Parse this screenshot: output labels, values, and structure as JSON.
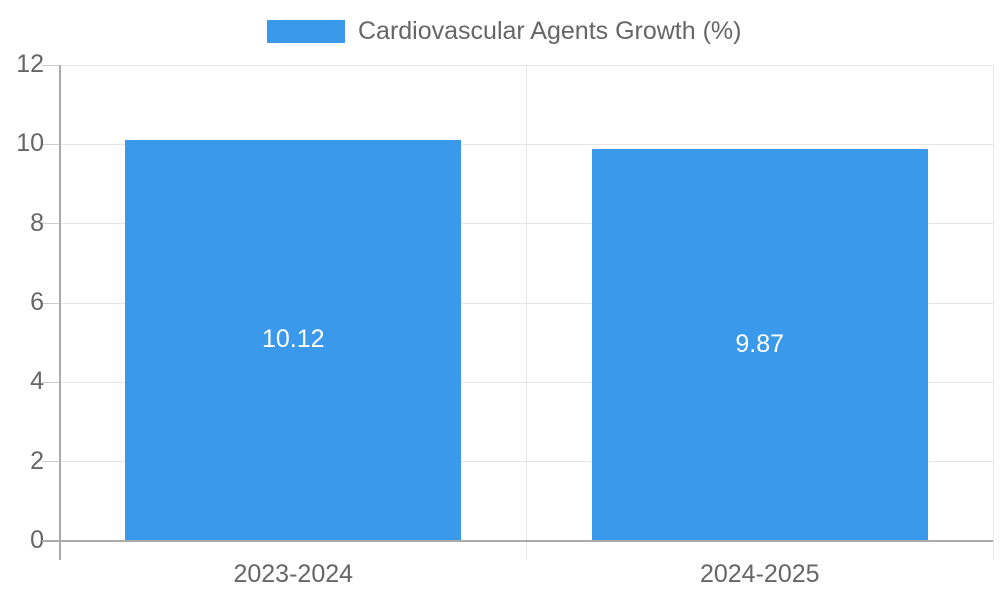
{
  "chart_data": {
    "type": "bar",
    "legend_label": "Cardiovascular Agents Growth (%)",
    "legend_position": "top",
    "categories": [
      "2023-2024",
      "2024-2025"
    ],
    "values": [
      10.12,
      9.87
    ],
    "value_labels": [
      "10.12",
      "9.87"
    ],
    "ylim": [
      0,
      12
    ],
    "yticks": [
      0,
      2,
      4,
      6,
      8,
      10,
      12
    ],
    "grid": true,
    "xlabel": "",
    "ylabel": "",
    "colors": {
      "bar": "#3B99EC",
      "value_label": "#ffffff",
      "axis_label": "#666666",
      "legend_label": "#666666",
      "gridline": "#e6e6e6",
      "tick_stub": "#cccccc",
      "axis_line": "#ababab"
    }
  }
}
